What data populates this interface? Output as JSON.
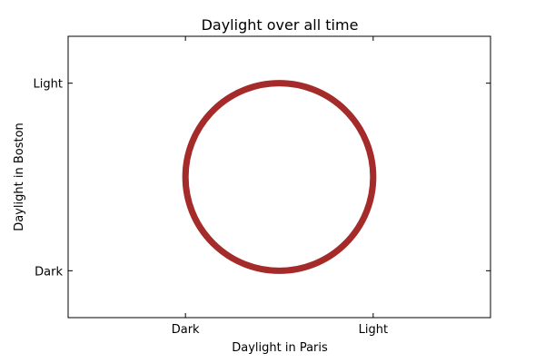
{
  "chart_data": {
    "type": "line",
    "title": "Daylight over all time",
    "xlabel": "Daylight in Paris",
    "ylabel": "Daylight in Boston",
    "xlim": [
      -0.625,
      1.625
    ],
    "ylim": [
      -0.25,
      1.25
    ],
    "x_ticks": [
      {
        "value": 0,
        "label": "Dark"
      },
      {
        "value": 1,
        "label": "Light"
      }
    ],
    "y_ticks": [
      {
        "value": 0,
        "label": "Dark"
      },
      {
        "value": 1,
        "label": "Light"
      }
    ],
    "grid": false,
    "series": [
      {
        "shape": "circle",
        "center": [
          0.5,
          0.5
        ],
        "radius": 0.5,
        "color": "#a52a2a"
      }
    ]
  }
}
